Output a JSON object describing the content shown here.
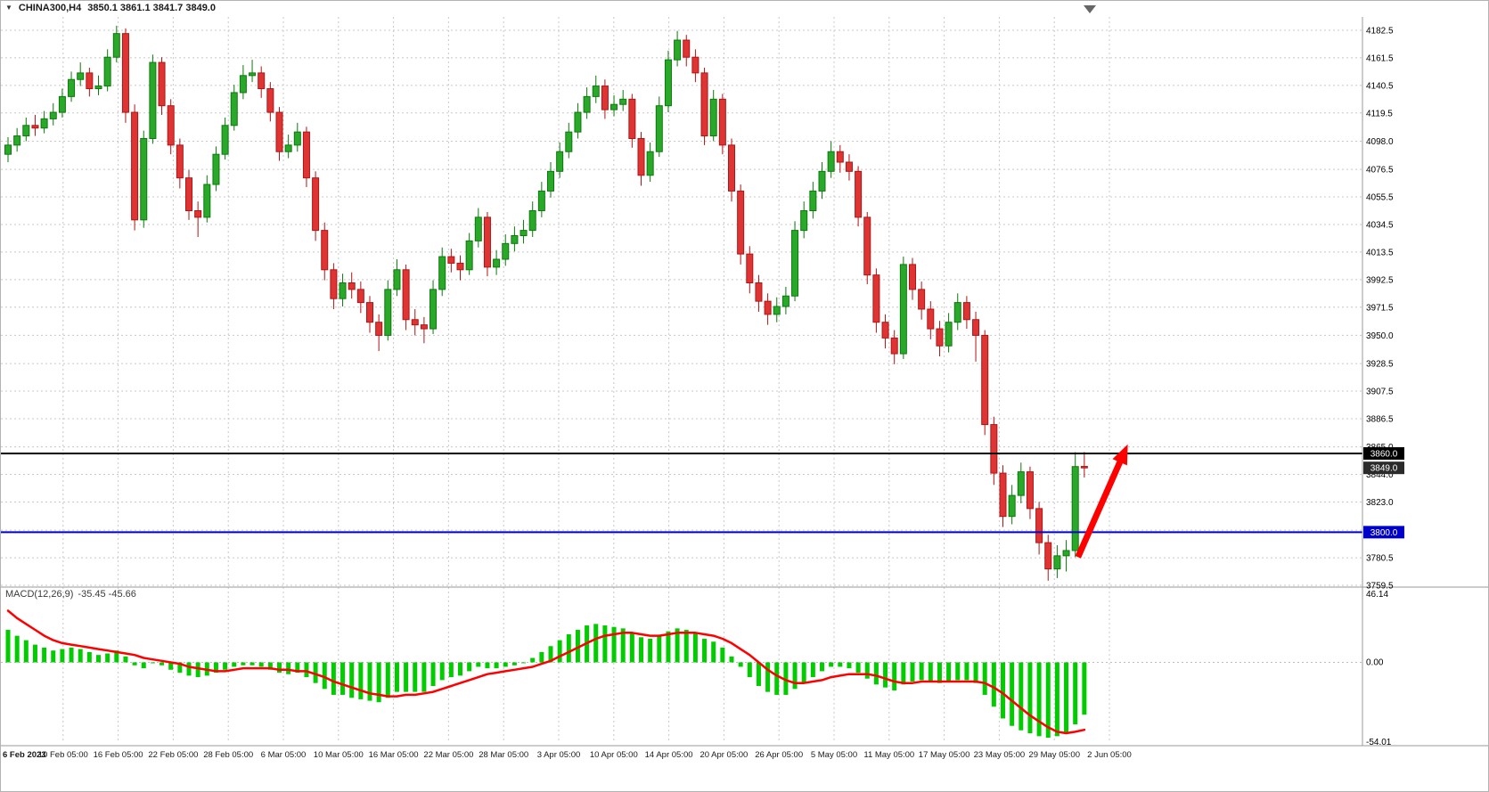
{
  "header": {
    "symbol_timeframe": "CHINA300,H4",
    "ohlc": "3850.1 3861.1 3841.7 3849.0"
  },
  "chart_data": {
    "type": "candlestick",
    "symbol": "CHINA300",
    "timeframe": "H4",
    "quote": {
      "open": 3850.1,
      "high": 3861.1,
      "low": 3841.7,
      "close": 3849.0
    },
    "x_labels": [
      "6 Feb 2023",
      "10 Feb 05:00",
      "16 Feb 05:00",
      "22 Feb 05:00",
      "28 Feb 05:00",
      "6 Mar 05:00",
      "10 Mar 05:00",
      "16 Mar 05:00",
      "22 Mar 05:00",
      "28 Mar 05:00",
      "3 Apr 05:00",
      "10 Apr 05:00",
      "14 Apr 05:00",
      "20 Apr 05:00",
      "26 Apr 05:00",
      "5 May 05:00",
      "11 May 05:00",
      "17 May 05:00",
      "23 May 05:00",
      "29 May 05:00",
      "2 Jun 05:00"
    ],
    "price_axis": {
      "ticks": [
        4182.5,
        4161.5,
        4140.5,
        4119.5,
        4098.0,
        4076.5,
        4055.5,
        4034.5,
        4013.5,
        3992.5,
        3971.5,
        3950.0,
        3928.5,
        3907.5,
        3886.5,
        3865.0,
        3844.0,
        3823.0,
        3801.5,
        3780.5,
        3759.5
      ]
    },
    "candles": [
      [
        4088,
        4101,
        4082,
        4095
      ],
      [
        4095,
        4108,
        4090,
        4102
      ],
      [
        4102,
        4116,
        4098,
        4110
      ],
      [
        4110,
        4118,
        4102,
        4108
      ],
      [
        4108,
        4121,
        4104,
        4115
      ],
      [
        4115,
        4127,
        4110,
        4120
      ],
      [
        4120,
        4138,
        4116,
        4132
      ],
      [
        4132,
        4151,
        4128,
        4145
      ],
      [
        4145,
        4158,
        4140,
        4150
      ],
      [
        4150,
        4154,
        4132,
        4138
      ],
      [
        4138,
        4148,
        4133,
        4140
      ],
      [
        4140,
        4168,
        4136,
        4162
      ],
      [
        4162,
        4186,
        4158,
        4180
      ],
      [
        4180,
        4184,
        4112,
        4120
      ],
      [
        4120,
        4126,
        4030,
        4038
      ],
      [
        4038,
        4106,
        4032,
        4100
      ],
      [
        4100,
        4164,
        4096,
        4158
      ],
      [
        4158,
        4162,
        4118,
        4125
      ],
      [
        4125,
        4130,
        4088,
        4095
      ],
      [
        4095,
        4100,
        4062,
        4070
      ],
      [
        4070,
        4076,
        4038,
        4045
      ],
      [
        4045,
        4052,
        4025,
        4040
      ],
      [
        4040,
        4072,
        4036,
        4065
      ],
      [
        4065,
        4094,
        4060,
        4088
      ],
      [
        4088,
        4116,
        4084,
        4110
      ],
      [
        4110,
        4141,
        4106,
        4135
      ],
      [
        4135,
        4156,
        4130,
        4148
      ],
      [
        4148,
        4160,
        4143,
        4150
      ],
      [
        4150,
        4155,
        4131,
        4138
      ],
      [
        4138,
        4143,
        4113,
        4120
      ],
      [
        4120,
        4124,
        4083,
        4090
      ],
      [
        4090,
        4103,
        4085,
        4095
      ],
      [
        4095,
        4112,
        4090,
        4105
      ],
      [
        4105,
        4109,
        4063,
        4070
      ],
      [
        4070,
        4075,
        4022,
        4030
      ],
      [
        4030,
        4036,
        3992,
        4000
      ],
      [
        4000,
        4005,
        3970,
        3978
      ],
      [
        3978,
        3997,
        3972,
        3990
      ],
      [
        3990,
        3998,
        3978,
        3985
      ],
      [
        3985,
        3991,
        3967,
        3975
      ],
      [
        3975,
        3980,
        3952,
        3960
      ],
      [
        3960,
        3966,
        3938,
        3950
      ],
      [
        3950,
        3992,
        3946,
        3985
      ],
      [
        3985,
        4008,
        3980,
        4000
      ],
      [
        4000,
        4004,
        3954,
        3962
      ],
      [
        3962,
        3970,
        3950,
        3958
      ],
      [
        3958,
        3964,
        3944,
        3955
      ],
      [
        3955,
        3992,
        3951,
        3985
      ],
      [
        3985,
        4017,
        3980,
        4010
      ],
      [
        4010,
        4016,
        3998,
        4005
      ],
      [
        4005,
        4011,
        3992,
        4000
      ],
      [
        4000,
        4028,
        3996,
        4022
      ],
      [
        4022,
        4047,
        4017,
        4040
      ],
      [
        4040,
        4044,
        3995,
        4002
      ],
      [
        4002,
        4015,
        3996,
        4008
      ],
      [
        4008,
        4027,
        4003,
        4020
      ],
      [
        4020,
        4033,
        4014,
        4026
      ],
      [
        4026,
        4038,
        4020,
        4030
      ],
      [
        4030,
        4052,
        4025,
        4045
      ],
      [
        4045,
        4067,
        4040,
        4060
      ],
      [
        4060,
        4082,
        4055,
        4075
      ],
      [
        4075,
        4097,
        4070,
        4090
      ],
      [
        4090,
        4112,
        4085,
        4105
      ],
      [
        4105,
        4127,
        4100,
        4120
      ],
      [
        4120,
        4139,
        4115,
        4132
      ],
      [
        4132,
        4148,
        4127,
        4140
      ],
      [
        4140,
        4145,
        4115,
        4122
      ],
      [
        4122,
        4133,
        4117,
        4126
      ],
      [
        4126,
        4137,
        4121,
        4130
      ],
      [
        4130,
        4134,
        4093,
        4100
      ],
      [
        4100,
        4105,
        4064,
        4072
      ],
      [
        4072,
        4097,
        4067,
        4090
      ],
      [
        4090,
        4132,
        4086,
        4125
      ],
      [
        4125,
        4167,
        4120,
        4160
      ],
      [
        4160,
        4182,
        4155,
        4175
      ],
      [
        4175,
        4179,
        4155,
        4162
      ],
      [
        4162,
        4168,
        4143,
        4150
      ],
      [
        4150,
        4154,
        4095,
        4102
      ],
      [
        4102,
        4137,
        4098,
        4130
      ],
      [
        4130,
        4134,
        4088,
        4095
      ],
      [
        4095,
        4100,
        4052,
        4060
      ],
      [
        4060,
        4065,
        4004,
        4012
      ],
      [
        4012,
        4018,
        3982,
        3990
      ],
      [
        3990,
        3996,
        3968,
        3976
      ],
      [
        3976,
        3982,
        3958,
        3966
      ],
      [
        3966,
        3979,
        3960,
        3972
      ],
      [
        3972,
        3987,
        3966,
        3980
      ],
      [
        3980,
        4037,
        3976,
        4030
      ],
      [
        4030,
        4052,
        4024,
        4045
      ],
      [
        4045,
        4067,
        4039,
        4060
      ],
      [
        4060,
        4082,
        4054,
        4075
      ],
      [
        4075,
        4098,
        4070,
        4090
      ],
      [
        4090,
        4095,
        4074,
        4082
      ],
      [
        4082,
        4088,
        4068,
        4075
      ],
      [
        4075,
        4079,
        4033,
        4040
      ],
      [
        4040,
        4044,
        3989,
        3996
      ],
      [
        3996,
        4001,
        3952,
        3960
      ],
      [
        3960,
        3966,
        3940,
        3948
      ],
      [
        3948,
        3954,
        3928,
        3936
      ],
      [
        3936,
        4010,
        3932,
        4004
      ],
      [
        4004,
        4009,
        3977,
        3985
      ],
      [
        3985,
        3991,
        3962,
        3970
      ],
      [
        3970,
        3976,
        3947,
        3955
      ],
      [
        3955,
        3961,
        3934,
        3942
      ],
      [
        3942,
        3967,
        3937,
        3960
      ],
      [
        3960,
        3982,
        3954,
        3975
      ],
      [
        3975,
        3980,
        3955,
        3962
      ],
      [
        3962,
        3968,
        3930,
        3950
      ],
      [
        3950,
        3954,
        3874,
        3882
      ],
      [
        3882,
        3888,
        3836,
        3845
      ],
      [
        3845,
        3851,
        3804,
        3812
      ],
      [
        3812,
        3836,
        3806,
        3828
      ],
      [
        3828,
        3853,
        3822,
        3846
      ],
      [
        3846,
        3850,
        3810,
        3818
      ],
      [
        3818,
        3823,
        3783,
        3792
      ],
      [
        3792,
        3798,
        3763,
        3772
      ],
      [
        3772,
        3790,
        3765,
        3782
      ],
      [
        3782,
        3794,
        3770,
        3786
      ],
      [
        3786,
        3861,
        3781,
        3850
      ],
      [
        3850.1,
        3861.1,
        3841.7,
        3849.0
      ]
    ],
    "hlines": [
      {
        "price": 3860.0,
        "label": "3860.0",
        "color": "#000000"
      },
      {
        "price": 3800.0,
        "label": "3800.0",
        "color": "#0000C8"
      }
    ],
    "current_price_badge": {
      "price": 3849.0,
      "label": "3849.0",
      "color": "#2b2b2b"
    },
    "arrow": {
      "from_index": 118.3,
      "from_price": 3781,
      "to_index": 123.8,
      "to_price": 3867,
      "color": "#FF0000"
    },
    "macd": {
      "label": "MACD(12,26,9)",
      "values_text": "-35.45 -45.66",
      "axis_max": 46.14,
      "axis_min": -54.01,
      "axis_ticks": [
        46.14,
        0.0,
        -54.01
      ],
      "hist_color": "#00CC00",
      "signal_color": "#FF0000",
      "hist": [
        22,
        18,
        15,
        12,
        10,
        8,
        9,
        10,
        9,
        7,
        5,
        6,
        8,
        4,
        -2,
        -4,
        0,
        -2,
        -5,
        -7,
        -9,
        -10,
        -9,
        -7,
        -5,
        -3,
        -2,
        -2,
        -3,
        -5,
        -7,
        -8,
        -7,
        -10,
        -14,
        -18,
        -22,
        -22,
        -24,
        -25,
        -26,
        -27,
        -24,
        -20,
        -20,
        -20,
        -20,
        -16,
        -12,
        -10,
        -9,
        -6,
        -3,
        -4,
        -4,
        -3,
        -2,
        0,
        3,
        7,
        11,
        15,
        19,
        22,
        25,
        26,
        25,
        24,
        23,
        20,
        17,
        16,
        18,
        21,
        23,
        22,
        20,
        16,
        14,
        10,
        4,
        -3,
        -10,
        -16,
        -20,
        -22,
        -22,
        -18,
        -14,
        -10,
        -6,
        -3,
        -3,
        -4,
        -7,
        -11,
        -15,
        -17,
        -19,
        -15,
        -13,
        -12,
        -13,
        -14,
        -13,
        -12,
        -12,
        -14,
        -22,
        -30,
        -38,
        -43,
        -46,
        -48,
        -50,
        -51,
        -50,
        -48,
        -42,
        -35.45
      ],
      "signal": [
        35,
        30,
        26,
        22,
        18,
        15,
        13,
        12,
        11,
        10,
        9,
        8,
        7,
        6,
        5,
        3,
        2,
        1,
        0,
        -1,
        -3,
        -4,
        -5,
        -6,
        -6,
        -5,
        -4,
        -4,
        -4,
        -4,
        -5,
        -5,
        -6,
        -6,
        -8,
        -10,
        -13,
        -15,
        -17,
        -19,
        -21,
        -22,
        -23,
        -23,
        -22,
        -22,
        -21,
        -20,
        -18,
        -16,
        -14,
        -12,
        -10,
        -8,
        -7,
        -6,
        -5,
        -4,
        -3,
        -1,
        1,
        4,
        7,
        10,
        13,
        16,
        18,
        19,
        20,
        20,
        19,
        18,
        18,
        19,
        20,
        20,
        20,
        19,
        18,
        16,
        13,
        9,
        5,
        0,
        -5,
        -9,
        -12,
        -14,
        -14,
        -13,
        -12,
        -10,
        -9,
        -8,
        -8,
        -8,
        -9,
        -11,
        -13,
        -14,
        -14,
        -13,
        -13,
        -13,
        -13,
        -13,
        -13,
        -13,
        -14,
        -17,
        -21,
        -26,
        -31,
        -36,
        -40,
        -44,
        -47,
        -48,
        -47,
        -45.66
      ]
    },
    "colors": {
      "up": "#2aa82a",
      "up_border": "#0b7a0b",
      "down": "#df3434",
      "down_border": "#b01414",
      "grid": "#c8c8c8",
      "separator": "#9a9a9a",
      "axis_text": "#000000",
      "background": "#ffffff",
      "shift_marker": "#666666"
    }
  }
}
